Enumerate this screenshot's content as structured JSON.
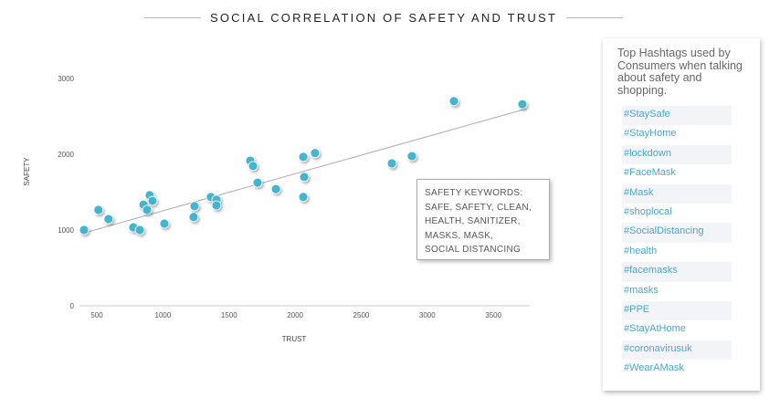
{
  "chart_data": {
    "type": "scatter",
    "title": "SOCIAL CORRELATION OF SAFETY AND TRUST",
    "xlabel": "TRUST",
    "ylabel": "SAFETY",
    "xlim": [
      300,
      3800
    ],
    "ylim": [
      0,
      3000
    ],
    "x_ticks": [
      500,
      1000,
      1500,
      2000,
      2500,
      3000,
      3500
    ],
    "y_ticks": [
      0,
      1000,
      2000,
      3000
    ],
    "grid": false,
    "point_color": "#45b5cf",
    "trendline": {
      "x": [
        400,
        3750
      ],
      "y": [
        960,
        2600
      ]
    },
    "points": [
      [
        403,
        1000
      ],
      [
        512,
        1265
      ],
      [
        588,
        1145
      ],
      [
        776,
        1035
      ],
      [
        825,
        1000
      ],
      [
        853,
        1335
      ],
      [
        880,
        1265
      ],
      [
        900,
        1460
      ],
      [
        921,
        1385
      ],
      [
        1011,
        1085
      ],
      [
        1232,
        1170
      ],
      [
        1239,
        1315
      ],
      [
        1363,
        1435
      ],
      [
        1405,
        1400
      ],
      [
        1405,
        1325
      ],
      [
        1661,
        1915
      ],
      [
        1682,
        1845
      ],
      [
        1716,
        1625
      ],
      [
        1855,
        1540
      ],
      [
        2062,
        1965
      ],
      [
        2069,
        1700
      ],
      [
        2062,
        1435
      ],
      [
        2151,
        2015
      ],
      [
        2732,
        1880
      ],
      [
        2884,
        1975
      ],
      [
        3202,
        2700
      ],
      [
        3720,
        2660
      ]
    ],
    "annotation": [
      "SAFETY KEYWORDS:",
      "SAFE, SAFETY, CLEAN,",
      "HEALTH, SANITIZER,",
      "MASKS, MASK,",
      "SOCIAL DISTANCING"
    ]
  },
  "panel": {
    "title": "Top Hashtags used by Consumers when talking about safety and shopping.",
    "tags": [
      "#StaySafe",
      "#StayHome",
      "#lockdown",
      "#FaceMask",
      "#Mask",
      "#shoplocal",
      "#SocialDistancing",
      "#health",
      "#facemasks",
      "#masks",
      "#PPE",
      "#StayAtHome",
      "#coronavirusuk",
      "#WearAMask"
    ]
  }
}
